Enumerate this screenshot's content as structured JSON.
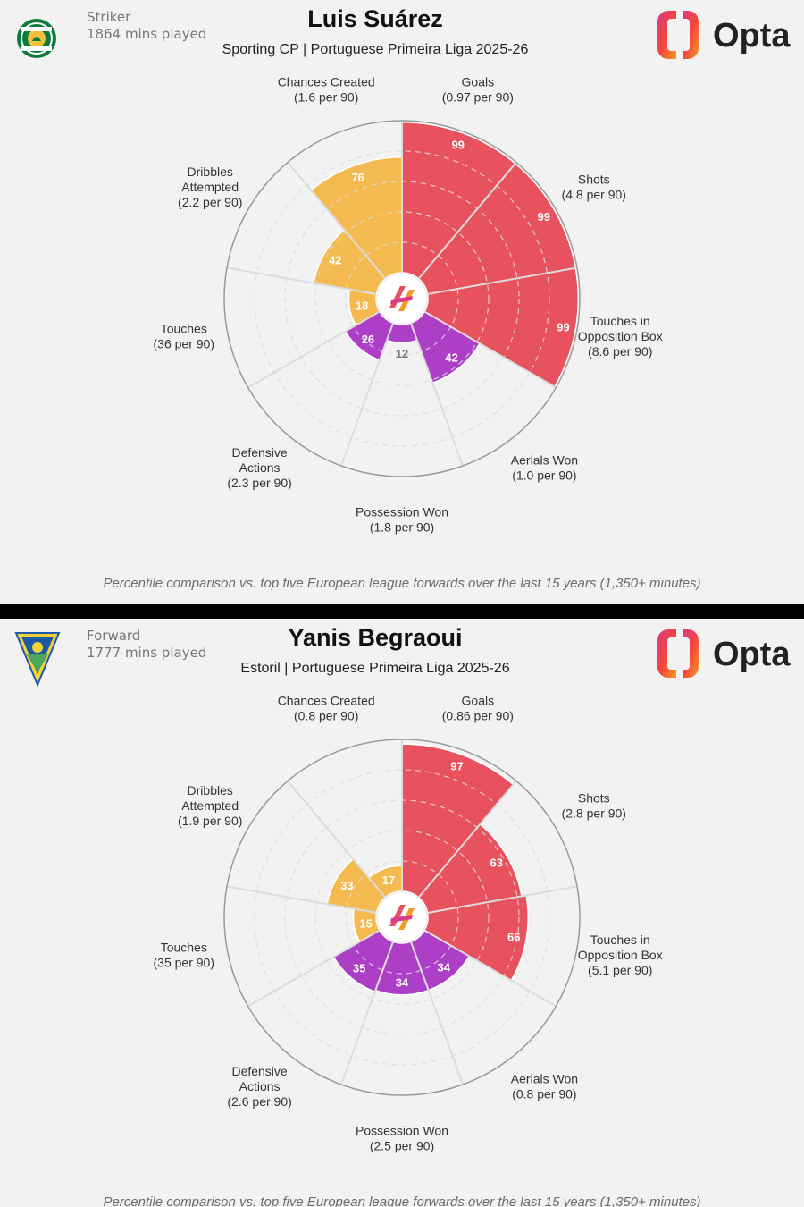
{
  "panels": [
    {
      "role": "Striker",
      "minutes": "1864 mins played",
      "player": "Luis Suárez",
      "subtitle": "Sporting CP | Portuguese Primeira Liga 2025-26",
      "crest_icon": "sporting-cp-crest-icon",
      "brand": "Opta",
      "footnote": "Percentile comparison vs. top five European league forwards over the last 15 years (1,350+ minutes)",
      "chart_data": {
        "type": "radial-bar",
        "range": [
          0,
          100
        ],
        "categories": [
          {
            "name": [
              "Goals"
            ],
            "per90": "(0.97 per 90)",
            "value": 99,
            "group": "attack"
          },
          {
            "name": [
              "Shots"
            ],
            "per90": "(4.8 per 90)",
            "value": 99,
            "group": "attack"
          },
          {
            "name": [
              "Touches in",
              "Opposition Box"
            ],
            "per90": "(8.6 per 90)",
            "value": 99,
            "group": "attack"
          },
          {
            "name": [
              "Aerials Won"
            ],
            "per90": "(1.0 per 90)",
            "value": 42,
            "group": "defense"
          },
          {
            "name": [
              "Possession Won"
            ],
            "per90": "(1.8 per 90)",
            "value": 12,
            "group": "defense"
          },
          {
            "name": [
              "Defensive",
              "Actions"
            ],
            "per90": "(2.3 per 90)",
            "value": 26,
            "group": "defense"
          },
          {
            "name": [
              "Touches"
            ],
            "per90": "(36 per 90)",
            "value": 18,
            "group": "possession"
          },
          {
            "name": [
              "Dribbles",
              "Attempted"
            ],
            "per90": "(2.2 per 90)",
            "value": 42,
            "group": "possession"
          },
          {
            "name": [
              "Chances Created"
            ],
            "per90": "(1.6 per 90)",
            "value": 76,
            "group": "possession"
          }
        ]
      }
    },
    {
      "role": "Forward",
      "minutes": "1777 mins played",
      "player": "Yanis Begraoui",
      "subtitle": "Estoril | Portuguese Primeira Liga 2025-26",
      "crest_icon": "estoril-crest-icon",
      "brand": "Opta",
      "footnote": "Percentile comparison vs. top five European league forwards over the last 15 years (1,350+ minutes)",
      "chart_data": {
        "type": "radial-bar",
        "range": [
          0,
          100
        ],
        "categories": [
          {
            "name": [
              "Goals"
            ],
            "per90": "(0.86 per 90)",
            "value": 97,
            "group": "attack"
          },
          {
            "name": [
              "Shots"
            ],
            "per90": "(2.8 per 90)",
            "value": 63,
            "group": "attack"
          },
          {
            "name": [
              "Touches in",
              "Opposition Box"
            ],
            "per90": "(5.1 per 90)",
            "value": 66,
            "group": "attack"
          },
          {
            "name": [
              "Aerials Won"
            ],
            "per90": "(0.8 per 90)",
            "value": 34,
            "group": "defense"
          },
          {
            "name": [
              "Possession Won"
            ],
            "per90": "(2.5 per 90)",
            "value": 34,
            "group": "defense"
          },
          {
            "name": [
              "Defensive",
              "Actions"
            ],
            "per90": "(2.6 per 90)",
            "value": 35,
            "group": "defense"
          },
          {
            "name": [
              "Touches"
            ],
            "per90": "(35 per 90)",
            "value": 15,
            "group": "possession"
          },
          {
            "name": [
              "Dribbles",
              "Attempted"
            ],
            "per90": "(1.9 per 90)",
            "value": 33,
            "group": "possession"
          },
          {
            "name": [
              "Chances Created"
            ],
            "per90": "(0.8 per 90)",
            "value": 17,
            "group": "possession"
          }
        ]
      }
    }
  ],
  "colors": {
    "attack": "#e8525f",
    "defense": "#ad3fc7",
    "possession": "#f5ba4f",
    "rings": "#dcdcdc",
    "outline": "#999999",
    "background": "#f2f2f2"
  }
}
